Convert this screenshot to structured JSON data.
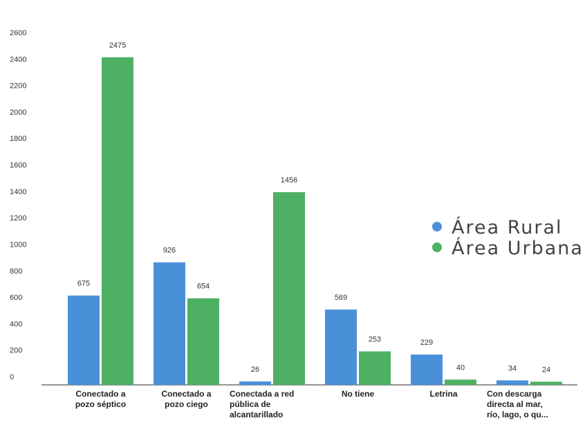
{
  "chart_data": {
    "type": "bar",
    "categories": [
      [
        "Conectado a",
        "pozo séptico"
      ],
      [
        "Conectado a",
        "pozo ciego"
      ],
      [
        "Conectada a red",
        "pública de",
        "alcantarillado"
      ],
      [
        "No tiene"
      ],
      [
        "Letrina"
      ],
      [
        "Con descarga",
        "directa al mar,",
        "río, lago, o qu..."
      ]
    ],
    "series": [
      {
        "name": "Área Rural",
        "color": "#4a90d9",
        "values": [
          675,
          926,
          26,
          569,
          229,
          34
        ]
      },
      {
        "name": "Área Urbana",
        "color": "#4eb062",
        "values": [
          2475,
          654,
          1456,
          253,
          40,
          24
        ]
      }
    ],
    "value_labels": [
      [
        "675",
        "926",
        "26",
        "569",
        "229",
        "34"
      ],
      [
        "2475",
        "654",
        "1456",
        "253",
        "40",
        "24"
      ]
    ],
    "yticks": [
      0,
      200,
      400,
      600,
      800,
      1000,
      1200,
      1400,
      1600,
      1800,
      2000,
      2200,
      2400,
      2600
    ],
    "ylim": [
      0,
      2600
    ],
    "title": "",
    "xlabel": "",
    "ylabel": "",
    "grid": false,
    "legend_position": "right"
  }
}
